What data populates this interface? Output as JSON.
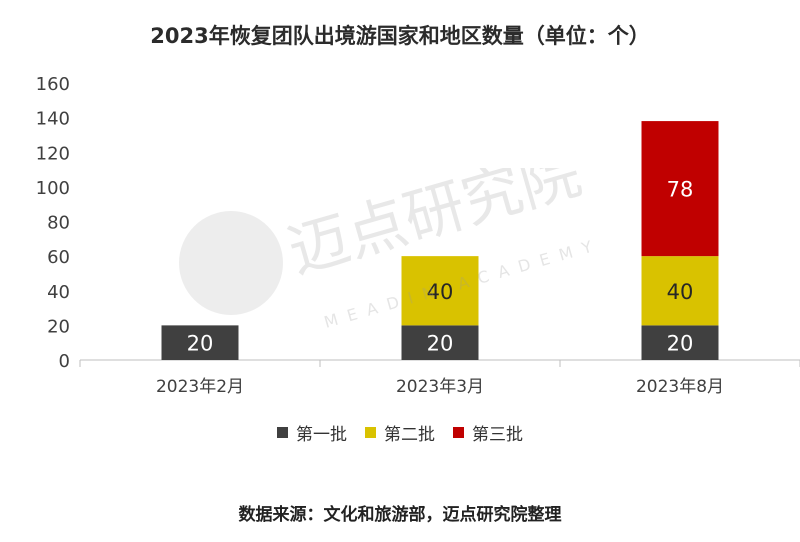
{
  "chart_data": {
    "type": "bar",
    "stacked": true,
    "title": "2023年恢复团队出境游国家和地区数量（单位：个）",
    "categories": [
      "2023年2月",
      "2023年3月",
      "2023年8月"
    ],
    "series": [
      {
        "name": "第一批",
        "values": [
          20,
          20,
          20
        ],
        "color": "#404040"
      },
      {
        "name": "第二批",
        "values": [
          0,
          40,
          40
        ],
        "color": "#D9C200"
      },
      {
        "name": "第三批",
        "values": [
          0,
          0,
          78
        ],
        "color": "#C00000"
      }
    ],
    "ylim": [
      0,
      160
    ],
    "yticks": [
      0,
      20,
      40,
      60,
      80,
      100,
      120,
      140,
      160
    ],
    "grid": false,
    "legend_position": "bottom"
  },
  "source_note": "数据来源：文化和旅游部，迈点研究院整理",
  "watermark": {
    "text_cn": "迈点研究院",
    "text_en": "MEADIN ACADEMY"
  }
}
